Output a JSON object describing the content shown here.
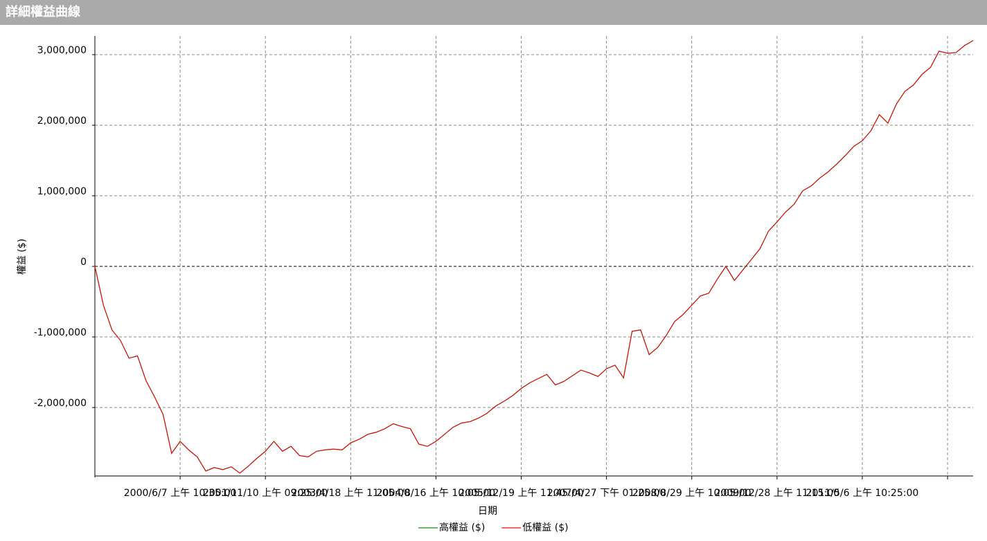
{
  "chart_data": {
    "type": "line",
    "title": "詳細權益曲線",
    "x_label": "日期",
    "y_label": "權益 ($)",
    "xlim": [
      0,
      103
    ],
    "xticks": [
      {
        "value": 10,
        "label": "2000/6/7 上午 10:35:00"
      },
      {
        "value": 20,
        "label": "2001/11/10 上午 09:25:00"
      },
      {
        "value": 30,
        "label": "2003/4/18 上午 11:05:00"
      },
      {
        "value": 40,
        "label": "2004/8/16 上午 10:05:00"
      },
      {
        "value": 50,
        "label": "2005/12/19 上午 11:45:00"
      },
      {
        "value": 60,
        "label": "2007/4/27 下午 01:25:00"
      },
      {
        "value": 70,
        "label": "2008/8/29 上午 10:05:00"
      },
      {
        "value": 80,
        "label": "2009/12/28 上午 11:15:00"
      },
      {
        "value": 90,
        "label": "2011/5/6 上午 10:25:00"
      },
      {
        "value": 100,
        "label": null
      }
    ],
    "ylim": [
      -2970000,
      3265000
    ],
    "yticks": [
      {
        "value": -2000000,
        "label": "-2,000,000"
      },
      {
        "value": -1000000,
        "label": "-1,000,000"
      },
      0,
      {
        "value": 1000000,
        "label": "1,000,000"
      },
      {
        "value": 2000000,
        "label": "2,000,000"
      },
      {
        "value": 3000000,
        "label": "3,000,000"
      }
    ],
    "grid": true,
    "series": [
      {
        "name": "高權益 ($)",
        "color": "#109010",
        "values": [
          0,
          -550000,
          -900000,
          -1050000,
          -1300000,
          -1270000,
          -1620000,
          -1850000,
          -2100000,
          -2650000,
          -2480000,
          -2600000,
          -2700000,
          -2900000,
          -2850000,
          -2880000,
          -2840000,
          -2930000,
          -2830000,
          -2720000,
          -2620000,
          -2480000,
          -2620000,
          -2550000,
          -2680000,
          -2700000,
          -2620000,
          -2600000,
          -2590000,
          -2600000,
          -2500000,
          -2450000,
          -2380000,
          -2350000,
          -2300000,
          -2230000,
          -2270000,
          -2300000,
          -2520000,
          -2550000,
          -2480000,
          -2380000,
          -2280000,
          -2220000,
          -2200000,
          -2150000,
          -2080000,
          -1980000,
          -1910000,
          -1830000,
          -1730000,
          -1650000,
          -1590000,
          -1530000,
          -1680000,
          -1630000,
          -1550000,
          -1470000,
          -1510000,
          -1560000,
          -1450000,
          -1400000,
          -1580000,
          -920000,
          -900000,
          -1250000,
          -1150000,
          -980000,
          -780000,
          -680000,
          -550000,
          -420000,
          -380000,
          -180000,
          0,
          -200000,
          -50000,
          100000,
          250000,
          500000,
          630000,
          770000,
          880000,
          1070000,
          1140000,
          1250000,
          1340000,
          1450000,
          1570000,
          1700000,
          1780000,
          1920000,
          2150000,
          2030000,
          2300000,
          2480000,
          2570000,
          2720000,
          2820000,
          3050000,
          3020000,
          3030000,
          3130000,
          3200000
        ]
      },
      {
        "name": "低權益 ($)",
        "color": "#e01010",
        "values": [
          0,
          -550000,
          -900000,
          -1050000,
          -1300000,
          -1270000,
          -1620000,
          -1850000,
          -2100000,
          -2650000,
          -2480000,
          -2600000,
          -2700000,
          -2900000,
          -2850000,
          -2880000,
          -2840000,
          -2930000,
          -2830000,
          -2720000,
          -2620000,
          -2480000,
          -2620000,
          -2550000,
          -2680000,
          -2700000,
          -2620000,
          -2600000,
          -2590000,
          -2600000,
          -2500000,
          -2450000,
          -2380000,
          -2350000,
          -2300000,
          -2230000,
          -2270000,
          -2300000,
          -2520000,
          -2550000,
          -2480000,
          -2380000,
          -2280000,
          -2220000,
          -2200000,
          -2150000,
          -2080000,
          -1980000,
          -1910000,
          -1830000,
          -1730000,
          -1650000,
          -1590000,
          -1530000,
          -1680000,
          -1630000,
          -1550000,
          -1470000,
          -1510000,
          -1560000,
          -1450000,
          -1400000,
          -1580000,
          -920000,
          -900000,
          -1250000,
          -1150000,
          -980000,
          -780000,
          -680000,
          -550000,
          -420000,
          -380000,
          -180000,
          0,
          -200000,
          -50000,
          100000,
          250000,
          500000,
          630000,
          770000,
          880000,
          1070000,
          1140000,
          1250000,
          1340000,
          1450000,
          1570000,
          1700000,
          1780000,
          1920000,
          2150000,
          2030000,
          2300000,
          2480000,
          2570000,
          2720000,
          2820000,
          3050000,
          3020000,
          3030000,
          3130000,
          3200000
        ]
      }
    ]
  }
}
